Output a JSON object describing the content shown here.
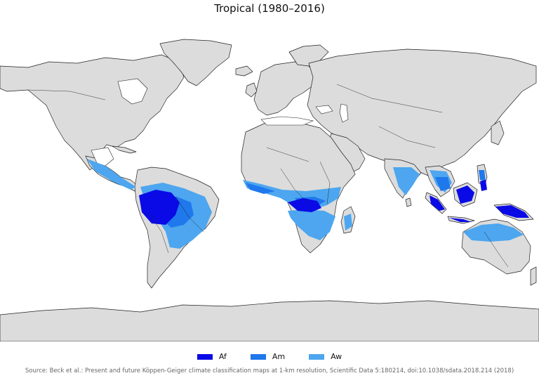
{
  "title": "Tropical (1980–2016)",
  "map": {
    "colors": {
      "ocean": "#ffffff",
      "land": "#dcdcdc",
      "border": "#222222"
    }
  },
  "legend": [
    {
      "label": "Af",
      "color": "#0a0ae6"
    },
    {
      "label": "Am",
      "color": "#1f78ec"
    },
    {
      "label": "Aw",
      "color": "#4da6ef"
    }
  ],
  "source": "Source: Beck et al.: Present and future Köppen-Geiger climate classification maps at 1-km resolution, Scientific Data 5:180214, doi:10.1038/sdata.2018.214 (2018)"
}
